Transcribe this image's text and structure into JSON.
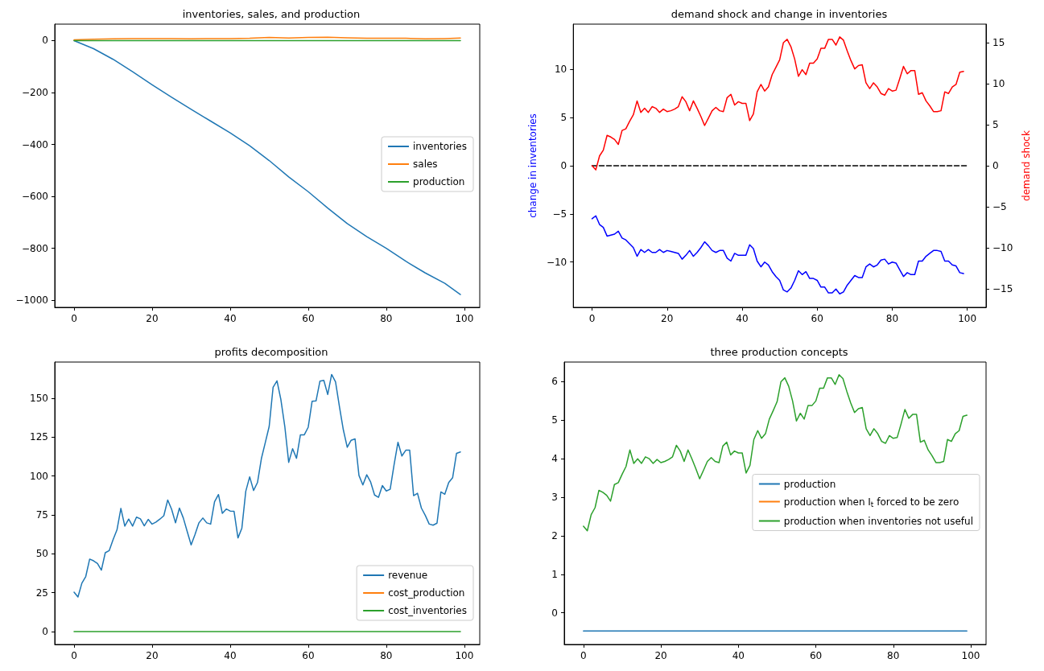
{
  "chart_data": [
    {
      "type": "line",
      "title": "inventories, sales, and production",
      "legend": "right",
      "xlim": [
        -4.95,
        103.95
      ],
      "xticks": [
        0,
        20,
        40,
        60,
        80,
        100
      ],
      "ylim": [
        -1027.5,
        63.5
      ],
      "yticks": [
        {
          "value": -1000,
          "label": "−1000"
        },
        {
          "value": -800,
          "label": "−800"
        },
        {
          "value": -600,
          "label": "−600"
        },
        {
          "value": -400,
          "label": "−400"
        },
        {
          "value": -200,
          "label": "−200"
        },
        0
      ],
      "series": [
        {
          "name": "inventories",
          "color": "#1f77b4",
          "x": [
            0,
            5,
            10,
            15,
            20,
            25,
            30,
            35,
            40,
            45,
            50,
            55,
            60,
            65,
            70,
            75,
            80,
            85,
            90,
            95,
            99
          ],
          "values": [
            0,
            -31,
            -72,
            -120,
            -170,
            -218,
            -265,
            -310,
            -355,
            -405,
            -462,
            -525,
            -582,
            -645,
            -705,
            -755,
            -800,
            -850,
            -895,
            -935,
            -978
          ]
        },
        {
          "name": "sales",
          "color": "#ff7f0e",
          "x": [
            0,
            5,
            10,
            15,
            20,
            25,
            30,
            35,
            40,
            45,
            50,
            55,
            60,
            65,
            70,
            75,
            80,
            85,
            90,
            95,
            99
          ],
          "values": [
            3,
            5,
            7,
            8,
            8,
            8,
            7,
            8,
            8,
            9,
            12,
            10,
            12,
            13,
            11,
            9,
            9,
            9,
            7,
            8,
            10
          ]
        },
        {
          "name": "production",
          "color": "#2ca02c",
          "x": [
            0,
            99
          ],
          "values": [
            0,
            0
          ]
        }
      ]
    },
    {
      "type": "line",
      "title": "demand shock and change in inventories",
      "ylabel": "change in inventories",
      "y2label": "demand shock",
      "xlim": [
        -5,
        105
      ],
      "xticks": [
        0,
        20,
        40,
        60,
        80,
        100
      ],
      "ylim": [
        -14.7,
        14.7
      ],
      "yticks": [
        {
          "value": -10,
          "label": "−10"
        },
        {
          "value": -5,
          "label": "−5"
        },
        0,
        5,
        10
      ],
      "y2lim": [
        -17.25,
        17.25
      ],
      "y2ticks": [
        {
          "value": -15,
          "label": "−15"
        },
        {
          "value": -10,
          "label": "−10"
        },
        {
          "value": -5,
          "label": "−5"
        },
        0,
        5,
        10,
        15
      ],
      "x": [
        0,
        1,
        2,
        3,
        4,
        5,
        6,
        7,
        8,
        9,
        10,
        11,
        12,
        13,
        14,
        15,
        16,
        17,
        18,
        19,
        20,
        21,
        22,
        23,
        24,
        25,
        26,
        27,
        28,
        29,
        30,
        31,
        32,
        33,
        34,
        35,
        36,
        37,
        38,
        39,
        40,
        41,
        42,
        43,
        44,
        45,
        46,
        47,
        48,
        49,
        50,
        51,
        52,
        53,
        54,
        55,
        56,
        57,
        58,
        59,
        60,
        61,
        62,
        63,
        64,
        65,
        66,
        67,
        68,
        69,
        70,
        71,
        72,
        73,
        74,
        75,
        76,
        77,
        78,
        79,
        80,
        81,
        82,
        83,
        84,
        85,
        86,
        87,
        88,
        89,
        90,
        91,
        92,
        93,
        94,
        95,
        96,
        97,
        98,
        99
      ],
      "series": [
        {
          "color": "#0000ff",
          "values": [
            -5.5,
            -5.2,
            -6.1,
            -6.4,
            -7.3,
            -7.2,
            -7.1,
            -6.8,
            -7.5,
            -7.7,
            -8.1,
            -8.5,
            -9.4,
            -8.7,
            -9.0,
            -8.7,
            -9.0,
            -9.0,
            -8.7,
            -9.0,
            -8.8,
            -8.9,
            -9.0,
            -9.1,
            -9.7,
            -9.3,
            -8.8,
            -9.4,
            -9.0,
            -8.5,
            -7.9,
            -8.3,
            -8.8,
            -9.0,
            -8.8,
            -8.8,
            -9.6,
            -9.9,
            -9.1,
            -9.3,
            -9.3,
            -9.3,
            -8.2,
            -8.6,
            -9.9,
            -10.5,
            -10.0,
            -10.3,
            -11.0,
            -11.5,
            -11.9,
            -12.9,
            -13.1,
            -12.7,
            -11.9,
            -10.9,
            -11.3,
            -11.0,
            -11.7,
            -11.7,
            -11.9,
            -12.6,
            -12.6,
            -13.2,
            -13.2,
            -12.8,
            -13.3,
            -13.1,
            -12.4,
            -11.9,
            -11.4,
            -11.6,
            -11.6,
            -10.5,
            -10.2,
            -10.5,
            -10.3,
            -9.8,
            -9.7,
            -10.2,
            -10.0,
            -10.1,
            -10.8,
            -11.5,
            -11.1,
            -11.3,
            -11.3,
            -9.9,
            -9.9,
            -9.4,
            -9.1,
            -8.8,
            -8.8,
            -8.9,
            -9.9,
            -9.9,
            -10.3,
            -10.4,
            -11.1,
            -11.2
          ]
        },
        {
          "color": "#000000",
          "line_style": "dashed",
          "x": [
            0,
            100
          ],
          "values": [
            0,
            0
          ]
        },
        {
          "color": "#ff0000",
          "axis": "y2",
          "values": [
            0,
            -0.5,
            1.2,
            1.9,
            3.7,
            3.5,
            3.2,
            2.6,
            4.3,
            4.5,
            5.4,
            6.2,
            7.9,
            6.5,
            7.0,
            6.5,
            7.2,
            7.0,
            6.5,
            6.9,
            6.6,
            6.7,
            6.9,
            7.2,
            8.4,
            7.8,
            6.7,
            7.9,
            7.0,
            6.0,
            4.9,
            5.8,
            6.7,
            7.1,
            6.7,
            6.6,
            8.3,
            8.7,
            7.4,
            7.8,
            7.6,
            7.6,
            5.5,
            6.3,
            9.0,
            9.9,
            9.1,
            9.6,
            11.1,
            12.0,
            12.9,
            15.0,
            15.4,
            14.5,
            13.0,
            10.9,
            11.7,
            11.1,
            12.5,
            12.5,
            13.0,
            14.3,
            14.3,
            15.4,
            15.4,
            14.7,
            15.7,
            15.3,
            14.0,
            12.8,
            11.8,
            12.2,
            12.3,
            10.1,
            9.4,
            10.1,
            9.6,
            8.8,
            8.6,
            9.4,
            9.1,
            9.2,
            10.6,
            12.1,
            11.2,
            11.6,
            11.6,
            8.7,
            8.9,
            7.9,
            7.3,
            6.6,
            6.6,
            6.7,
            9.0,
            8.8,
            9.6,
            9.9,
            11.4,
            11.5
          ]
        }
      ]
    },
    {
      "type": "line",
      "title": "profits decomposition",
      "legend": "bottom right",
      "xlim": [
        -4.95,
        103.95
      ],
      "xticks": [
        0,
        20,
        40,
        60,
        80,
        100
      ],
      "ylim": [
        -8.3,
        173.3
      ],
      "yticks": [
        0,
        25,
        50,
        75,
        100,
        125,
        150
      ],
      "x": [
        0,
        1,
        2,
        3,
        4,
        5,
        6,
        7,
        8,
        9,
        10,
        11,
        12,
        13,
        14,
        15,
        16,
        17,
        18,
        19,
        20,
        21,
        22,
        23,
        24,
        25,
        26,
        27,
        28,
        29,
        30,
        31,
        32,
        33,
        34,
        35,
        36,
        37,
        38,
        39,
        40,
        41,
        42,
        43,
        44,
        45,
        46,
        47,
        48,
        49,
        50,
        51,
        52,
        53,
        54,
        55,
        56,
        57,
        58,
        59,
        60,
        61,
        62,
        63,
        64,
        65,
        66,
        67,
        68,
        69,
        70,
        71,
        72,
        73,
        74,
        75,
        76,
        77,
        78,
        79,
        80,
        81,
        82,
        83,
        84,
        85,
        86,
        87,
        88,
        89,
        90,
        91,
        92,
        93,
        94,
        95,
        96,
        97,
        98,
        99
      ],
      "series": [
        {
          "name": "revenue",
          "color": "#1f77b4",
          "values": [
            25.3,
            22.2,
            31.1,
            35.4,
            46.6,
            45.5,
            43.8,
            39.5,
            50.7,
            52.0,
            59.1,
            65.4,
            79.2,
            67.8,
            72.3,
            67.8,
            73.6,
            72.5,
            68.0,
            72.1,
            69.1,
            70.4,
            72.3,
            74.5,
            84.6,
            78.6,
            69.9,
            79.4,
            73.0,
            64.3,
            55.7,
            62.4,
            69.9,
            73.0,
            69.9,
            69.1,
            83.5,
            88.1,
            76.0,
            78.8,
            77.5,
            77.3,
            60.2,
            66.5,
            90.2,
            99.5,
            90.7,
            95.8,
            111.2,
            121.5,
            131.9,
            157.1,
            161.2,
            149.1,
            131.9,
            108.8,
            117.6,
            111.4,
            126.5,
            126.5,
            131.4,
            148.1,
            148.3,
            161.0,
            161.5,
            152.4,
            165.3,
            160.6,
            144.6,
            129.7,
            118.5,
            123.0,
            123.9,
            100.4,
            94.3,
            100.8,
            96.1,
            87.8,
            86.3,
            93.9,
            90.4,
            91.5,
            107.3,
            121.7,
            112.9,
            116.6,
            116.6,
            87.4,
            88.9,
            79.4,
            74.7,
            69.1,
            68.4,
            69.7,
            89.8,
            88.3,
            95.8,
            98.9,
            114.6,
            115.5
          ]
        },
        {
          "name": "cost_production",
          "color": "#ff7f0e",
          "values": [
            null,
            null,
            null,
            null,
            null,
            null,
            null,
            null,
            null,
            null,
            null,
            null,
            null,
            null,
            null,
            null,
            null,
            null,
            null,
            null,
            null,
            null,
            null,
            null,
            null,
            null,
            null,
            null,
            null,
            null,
            null,
            null,
            null,
            null,
            null,
            null,
            null,
            null,
            null,
            null,
            null,
            null,
            null,
            null,
            null,
            null,
            null,
            null,
            null,
            null,
            null,
            null,
            null,
            null,
            null,
            null,
            null,
            null,
            null,
            null,
            null,
            null,
            null,
            null,
            null,
            null,
            null,
            null,
            null,
            null,
            null,
            null,
            null,
            null,
            null,
            null,
            null,
            null,
            null,
            null,
            null,
            null,
            null,
            null,
            null,
            null,
            null,
            null,
            null,
            null,
            null,
            null,
            null,
            null,
            null,
            null,
            null,
            null,
            null,
            null
          ]
        },
        {
          "name": "cost_inventories",
          "color": "#2ca02c",
          "x": [
            0,
            99
          ],
          "values": [
            0,
            0
          ]
        }
      ]
    },
    {
      "type": "line",
      "title": "three production concepts",
      "legend": "right",
      "xlim": [
        -4.95,
        103.95
      ],
      "xticks": [
        0,
        20,
        40,
        60,
        80,
        100
      ],
      "ylim": [
        -0.82,
        6.51
      ],
      "yticks": [
        0,
        1,
        2,
        3,
        4,
        5,
        6
      ],
      "x": [
        0,
        1,
        2,
        3,
        4,
        5,
        6,
        7,
        8,
        9,
        10,
        11,
        12,
        13,
        14,
        15,
        16,
        17,
        18,
        19,
        20,
        21,
        22,
        23,
        24,
        25,
        26,
        27,
        28,
        29,
        30,
        31,
        32,
        33,
        34,
        35,
        36,
        37,
        38,
        39,
        40,
        41,
        42,
        43,
        44,
        45,
        46,
        47,
        48,
        49,
        50,
        51,
        52,
        53,
        54,
        55,
        56,
        57,
        58,
        59,
        60,
        61,
        62,
        63,
        64,
        65,
        66,
        67,
        68,
        69,
        70,
        71,
        72,
        73,
        74,
        75,
        76,
        77,
        78,
        79,
        80,
        81,
        82,
        83,
        84,
        85,
        86,
        87,
        88,
        89,
        90,
        91,
        92,
        93,
        94,
        95,
        96,
        97,
        98,
        99
      ],
      "series": [
        {
          "name": "production",
          "color": "#1f77b4",
          "x": [
            0,
            99
          ],
          "values": [
            -0.47,
            -0.47
          ]
        },
        {
          "name": "production when I$_{t}$ forced to be zero",
          "color": "#ff7f0e",
          "values": [
            null,
            null,
            null,
            null,
            null,
            null,
            null,
            null,
            null,
            null,
            null,
            null,
            null,
            null,
            null,
            null,
            null,
            null,
            null,
            null,
            null,
            null,
            null,
            null,
            null,
            null,
            null,
            null,
            null,
            null,
            null,
            null,
            null,
            null,
            null,
            null,
            null,
            null,
            null,
            null,
            null,
            null,
            null,
            null,
            null,
            null,
            null,
            null,
            null,
            null,
            null,
            null,
            null,
            null,
            null,
            null,
            null,
            null,
            null,
            null,
            null,
            null,
            null,
            null,
            null,
            null,
            null,
            null,
            null,
            null,
            null,
            null,
            null,
            null,
            null,
            null,
            null,
            null,
            null,
            null,
            null,
            null,
            null,
            null,
            null,
            null,
            null,
            null,
            null,
            null,
            null,
            null,
            null,
            null,
            null,
            null,
            null,
            null,
            null,
            null
          ]
        },
        {
          "name": "production when inventories not useful",
          "color": "#2ca02c",
          "values": [
            2.25,
            2.13,
            2.55,
            2.73,
            3.18,
            3.13,
            3.05,
            2.9,
            3.33,
            3.38,
            3.6,
            3.8,
            4.23,
            3.88,
            4.0,
            3.88,
            4.05,
            4.0,
            3.88,
            3.98,
            3.9,
            3.93,
            3.98,
            4.05,
            4.35,
            4.2,
            3.93,
            4.23,
            4.0,
            3.75,
            3.48,
            3.7,
            3.93,
            4.03,
            3.93,
            3.9,
            4.33,
            4.43,
            4.1,
            4.2,
            4.15,
            4.15,
            3.63,
            3.83,
            4.5,
            4.73,
            4.53,
            4.65,
            5.03,
            5.25,
            5.48,
            6.0,
            6.1,
            5.88,
            5.5,
            4.98,
            5.18,
            5.03,
            5.38,
            5.38,
            5.5,
            5.83,
            5.83,
            6.1,
            6.1,
            5.93,
            6.18,
            6.08,
            5.75,
            5.45,
            5.2,
            5.3,
            5.33,
            4.78,
            4.6,
            4.78,
            4.65,
            4.45,
            4.4,
            4.6,
            4.53,
            4.55,
            4.9,
            5.28,
            5.05,
            5.15,
            5.15,
            4.43,
            4.48,
            4.23,
            4.08,
            3.9,
            3.9,
            3.93,
            4.5,
            4.45,
            4.65,
            4.73,
            5.1,
            5.13
          ]
        }
      ]
    }
  ]
}
